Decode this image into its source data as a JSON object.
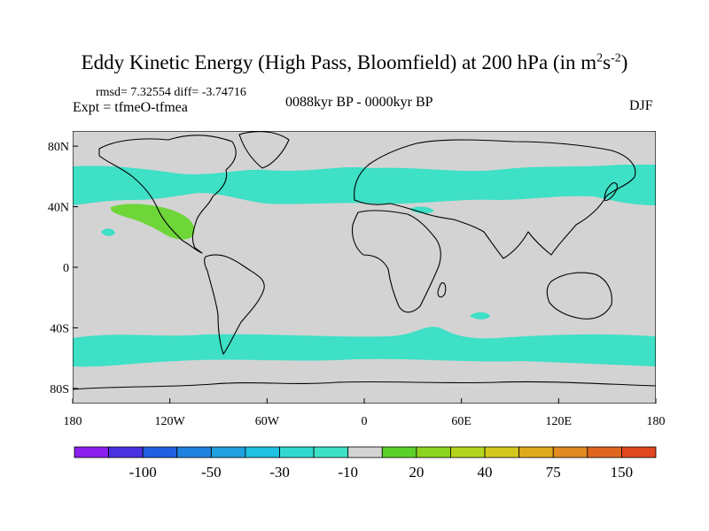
{
  "title": {
    "main": "Eddy Kinetic Energy (High Pass, Bloomfield) at 200 hPa (in m",
    "sup1": "2",
    "mid": "s",
    "sup2": "-2",
    "end": ")"
  },
  "stats_line": "rmsd= 7.32554 diff= -3.74716",
  "experiment": "Expt = tfmeO-tfmea",
  "period": "0088kyr BP - 0000kyr BP",
  "season": "DJF",
  "map": {
    "lat_ticks": [
      {
        "label": "80N",
        "lat": 80
      },
      {
        "label": "40N",
        "lat": 40
      },
      {
        "label": "0",
        "lat": 0
      },
      {
        "label": "40S",
        "lat": -40
      },
      {
        "label": "80S",
        "lat": -80
      }
    ],
    "lon_ticks": [
      {
        "label": "180",
        "lon": -180
      },
      {
        "label": "120W",
        "lon": -120
      },
      {
        "label": "60W",
        "lon": -60
      },
      {
        "label": "0",
        "lon": 0
      },
      {
        "label": "60E",
        "lon": 60
      },
      {
        "label": "120E",
        "lon": 120
      },
      {
        "label": "180",
        "lon": 180
      }
    ],
    "lat_range": [
      -90,
      90
    ],
    "lon_range": [
      -180,
      180
    ],
    "background_color": "#d3d3d3",
    "negative_band_color": "#3ee0c6",
    "positive_band_color": "#6fd63a"
  },
  "colorbar": {
    "colors": [
      "#8a1ff0",
      "#4a32e0",
      "#1f5fe0",
      "#1f82e0",
      "#1fa0e0",
      "#1fc0e0",
      "#30d8d0",
      "#3ee0c6",
      "#d3d3d3",
      "#5cd02a",
      "#8cd41f",
      "#b4d41f",
      "#d4c81f",
      "#e0aa1f",
      "#e08a1f",
      "#e0661f",
      "#e0461f"
    ],
    "labels": [
      {
        "text": "-100",
        "boundary": 2
      },
      {
        "text": "-50",
        "boundary": 4
      },
      {
        "text": "-30",
        "boundary": 6
      },
      {
        "text": "-10",
        "boundary": 8
      },
      {
        "text": "20",
        "boundary": 10
      },
      {
        "text": "40",
        "boundary": 12
      },
      {
        "text": "75",
        "boundary": 14
      },
      {
        "text": "150",
        "boundary": 16
      }
    ]
  }
}
